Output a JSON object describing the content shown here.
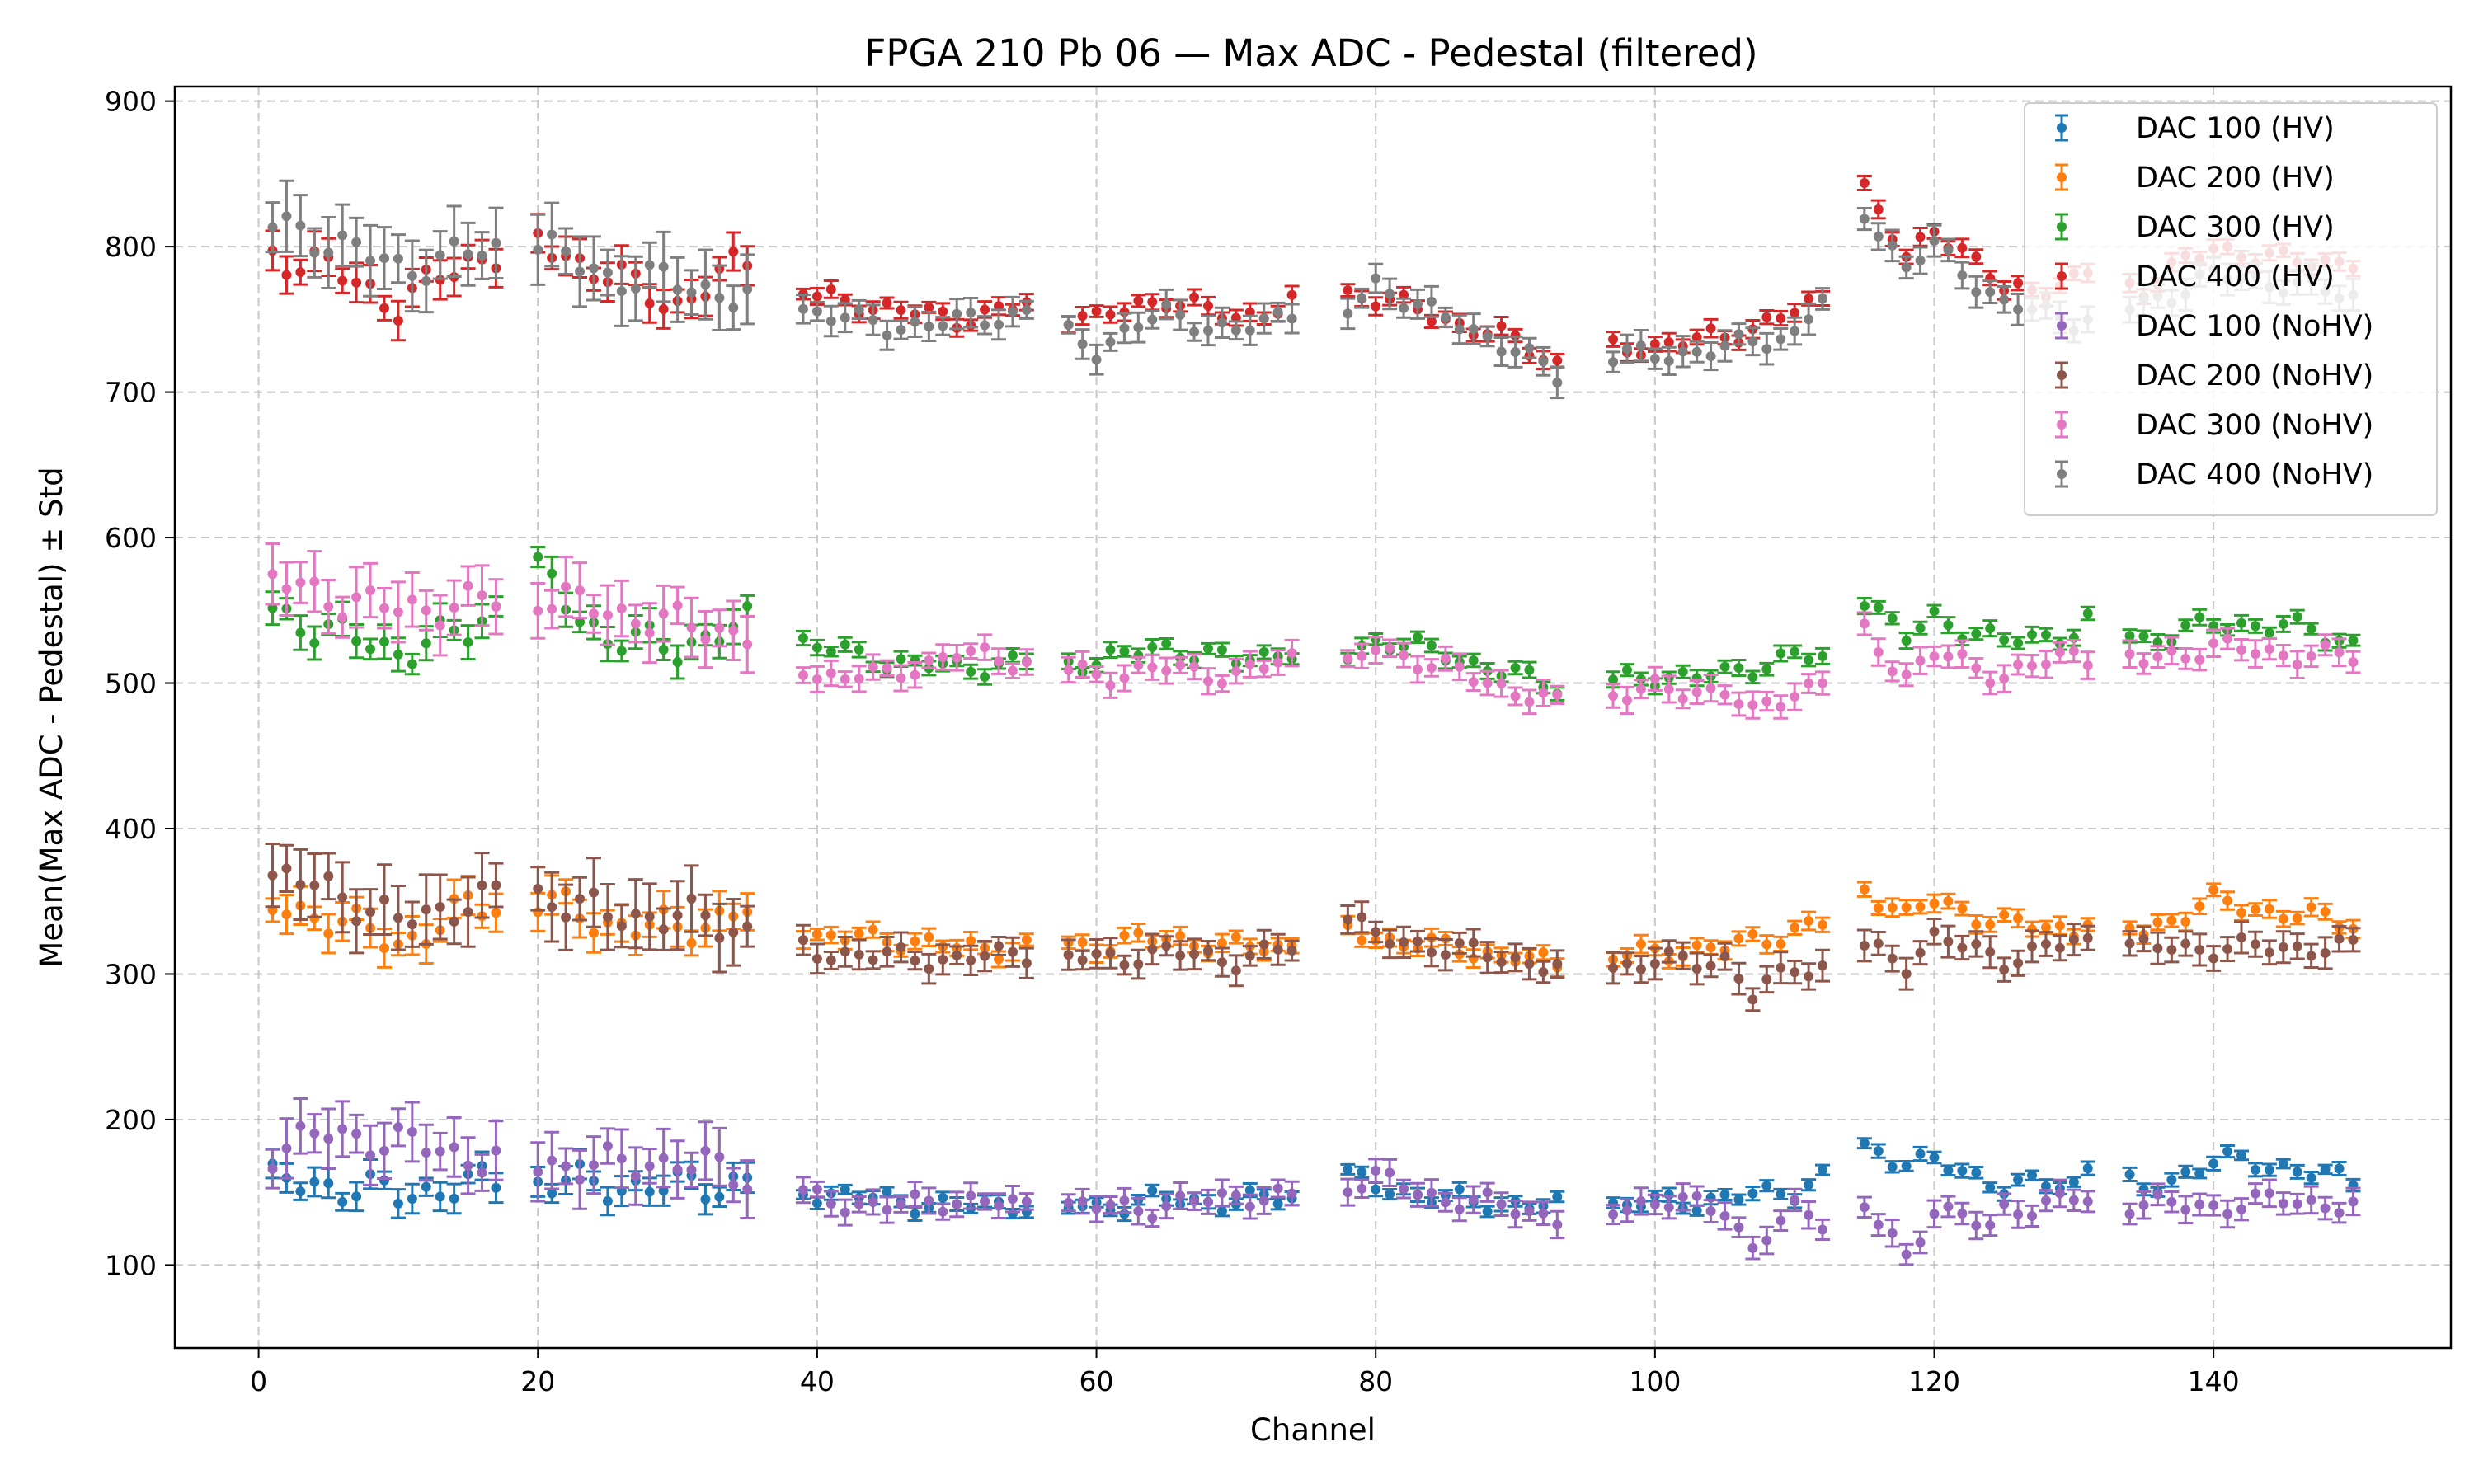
{
  "chart_data": {
    "type": "scatter",
    "title": "FPGA 210 Pb 06 — Max ADC - Pedestal (filtered)",
    "xlabel": "Channel",
    "ylabel": "Mean(Max ADC - Pedestal) ± Std",
    "xlim": [
      -6,
      157
    ],
    "ylim": [
      43,
      910
    ],
    "x_ticks": [
      0,
      20,
      40,
      60,
      80,
      100,
      120,
      140
    ],
    "y_ticks": [
      100,
      200,
      300,
      400,
      500,
      600,
      700,
      800,
      900
    ],
    "grid": true,
    "legend_position": "top-right",
    "series": [
      {
        "name": "DAC 100 (HV)",
        "color": "#1f77b4",
        "base": [
          [
            1,
            157
          ],
          [
            5,
            155
          ],
          [
            10,
            148
          ],
          [
            15,
            155
          ],
          [
            20,
            157
          ],
          [
            25,
            155
          ],
          [
            30,
            153
          ],
          [
            35,
            158
          ],
          [
            40,
            150
          ],
          [
            45,
            145
          ],
          [
            50,
            140
          ],
          [
            55,
            142
          ],
          [
            60,
            140
          ],
          [
            65,
            145
          ],
          [
            70,
            143
          ],
          [
            75,
            148
          ],
          [
            78,
            160
          ],
          [
            80,
            155
          ],
          [
            85,
            145
          ],
          [
            90,
            142
          ],
          [
            93,
            140
          ],
          [
            97,
            140
          ],
          [
            100,
            143
          ],
          [
            105,
            145
          ],
          [
            110,
            152
          ],
          [
            112,
            160
          ],
          [
            115,
            180
          ],
          [
            118,
            172
          ],
          [
            120,
            170
          ],
          [
            125,
            155
          ],
          [
            130,
            155
          ],
          [
            131,
            168
          ],
          [
            135,
            150
          ],
          [
            140,
            172
          ],
          [
            145,
            168
          ],
          [
            150,
            157
          ]
        ],
        "err": 6
      },
      {
        "name": "DAC 200 (HV)",
        "color": "#ff7f0e",
        "base": [
          [
            1,
            345
          ],
          [
            5,
            340
          ],
          [
            10,
            320
          ],
          [
            15,
            345
          ],
          [
            20,
            350
          ],
          [
            25,
            335
          ],
          [
            30,
            330
          ],
          [
            35,
            345
          ],
          [
            40,
            325
          ],
          [
            45,
            325
          ],
          [
            50,
            318
          ],
          [
            55,
            318
          ],
          [
            60,
            320
          ],
          [
            65,
            325
          ],
          [
            70,
            318
          ],
          [
            75,
            320
          ],
          [
            78,
            330
          ],
          [
            80,
            325
          ],
          [
            85,
            318
          ],
          [
            90,
            312
          ],
          [
            93,
            305
          ],
          [
            97,
            312
          ],
          [
            100,
            315
          ],
          [
            105,
            318
          ],
          [
            110,
            330
          ],
          [
            112,
            335
          ],
          [
            115,
            360
          ],
          [
            118,
            340
          ],
          [
            120,
            350
          ],
          [
            125,
            335
          ],
          [
            130,
            330
          ],
          [
            131,
            340
          ],
          [
            135,
            330
          ],
          [
            140,
            350
          ],
          [
            145,
            342
          ],
          [
            150,
            335
          ]
        ],
        "err": 8
      },
      {
        "name": "DAC 300 (HV)",
        "color": "#2ca02c",
        "base": [
          [
            1,
            550
          ],
          [
            5,
            535
          ],
          [
            10,
            522
          ],
          [
            15,
            535
          ],
          [
            20,
            575
          ],
          [
            25,
            530
          ],
          [
            30,
            525
          ],
          [
            35,
            540
          ],
          [
            40,
            525
          ],
          [
            45,
            515
          ],
          [
            50,
            510
          ],
          [
            55,
            515
          ],
          [
            60,
            515
          ],
          [
            65,
            525
          ],
          [
            70,
            515
          ],
          [
            75,
            525
          ],
          [
            78,
            520
          ],
          [
            80,
            530
          ],
          [
            85,
            520
          ],
          [
            90,
            505
          ],
          [
            93,
            498
          ],
          [
            97,
            500
          ],
          [
            100,
            505
          ],
          [
            105,
            505
          ],
          [
            110,
            520
          ],
          [
            112,
            515
          ],
          [
            115,
            560
          ],
          [
            118,
            530
          ],
          [
            120,
            545
          ],
          [
            125,
            528
          ],
          [
            130,
            535
          ],
          [
            131,
            542
          ],
          [
            135,
            530
          ],
          [
            140,
            540
          ],
          [
            145,
            540
          ],
          [
            150,
            528
          ]
        ],
        "err": 7
      },
      {
        "name": "DAC 400 (HV)",
        "color": "#d62728",
        "base": [
          [
            1,
            795
          ],
          [
            5,
            785
          ],
          [
            10,
            760
          ],
          [
            15,
            790
          ],
          [
            20,
            805
          ],
          [
            25,
            780
          ],
          [
            30,
            760
          ],
          [
            35,
            790
          ],
          [
            40,
            765
          ],
          [
            45,
            758
          ],
          [
            50,
            750
          ],
          [
            55,
            760
          ],
          [
            60,
            750
          ],
          [
            65,
            765
          ],
          [
            70,
            750
          ],
          [
            75,
            765
          ],
          [
            78,
            768
          ],
          [
            80,
            765
          ],
          [
            85,
            750
          ],
          [
            90,
            735
          ],
          [
            93,
            720
          ],
          [
            97,
            730
          ],
          [
            100,
            732
          ],
          [
            105,
            738
          ],
          [
            110,
            755
          ],
          [
            112,
            762
          ],
          [
            115,
            840
          ],
          [
            118,
            790
          ],
          [
            120,
            815
          ],
          [
            125,
            770
          ],
          [
            130,
            775
          ],
          [
            131,
            780
          ],
          [
            135,
            772
          ],
          [
            140,
            800
          ],
          [
            145,
            790
          ],
          [
            150,
            790
          ]
        ],
        "err": 8
      },
      {
        "name": "DAC 100 (NoHV)",
        "color": "#9467bd",
        "base": [
          [
            1,
            180
          ],
          [
            5,
            190
          ],
          [
            10,
            185
          ],
          [
            15,
            175
          ],
          [
            20,
            170
          ],
          [
            25,
            168
          ],
          [
            30,
            172
          ],
          [
            35,
            160
          ],
          [
            40,
            145
          ],
          [
            45,
            140
          ],
          [
            50,
            145
          ],
          [
            55,
            140
          ],
          [
            60,
            140
          ],
          [
            65,
            140
          ],
          [
            70,
            148
          ],
          [
            75,
            145
          ],
          [
            78,
            155
          ],
          [
            80,
            160
          ],
          [
            85,
            145
          ],
          [
            90,
            140
          ],
          [
            93,
            132
          ],
          [
            97,
            140
          ],
          [
            100,
            143
          ],
          [
            105,
            140
          ],
          [
            107,
            110
          ],
          [
            110,
            138
          ],
          [
            112,
            132
          ],
          [
            115,
            140
          ],
          [
            118,
            105
          ],
          [
            120,
            140
          ],
          [
            124,
            125
          ],
          [
            125,
            138
          ],
          [
            130,
            145
          ],
          [
            135,
            142
          ],
          [
            140,
            140
          ],
          [
            145,
            145
          ],
          [
            150,
            140
          ]
        ],
        "err": 12
      },
      {
        "name": "DAC 200 (NoHV)",
        "color": "#8c564b",
        "base": [
          [
            1,
            365
          ],
          [
            5,
            360
          ],
          [
            10,
            335
          ],
          [
            15,
            350
          ],
          [
            20,
            355
          ],
          [
            25,
            340
          ],
          [
            30,
            340
          ],
          [
            35,
            330
          ],
          [
            40,
            315
          ],
          [
            45,
            312
          ],
          [
            50,
            310
          ],
          [
            55,
            315
          ],
          [
            60,
            310
          ],
          [
            65,
            315
          ],
          [
            70,
            310
          ],
          [
            75,
            320
          ],
          [
            78,
            340
          ],
          [
            80,
            325
          ],
          [
            85,
            318
          ],
          [
            90,
            310
          ],
          [
            93,
            305
          ],
          [
            97,
            305
          ],
          [
            100,
            308
          ],
          [
            105,
            310
          ],
          [
            107,
            285
          ],
          [
            110,
            305
          ],
          [
            112,
            305
          ],
          [
            115,
            318
          ],
          [
            118,
            308
          ],
          [
            120,
            325
          ],
          [
            125,
            310
          ],
          [
            130,
            322
          ],
          [
            135,
            318
          ],
          [
            140,
            318
          ],
          [
            145,
            318
          ],
          [
            150,
            318
          ]
        ],
        "err": 14
      },
      {
        "name": "DAC 300 (NoHV)",
        "color": "#e377c2",
        "base": [
          [
            1,
            570
          ],
          [
            5,
            560
          ],
          [
            10,
            550
          ],
          [
            15,
            555
          ],
          [
            20,
            560
          ],
          [
            25,
            550
          ],
          [
            30,
            540
          ],
          [
            35,
            535
          ],
          [
            40,
            505
          ],
          [
            45,
            505
          ],
          [
            50,
            520
          ],
          [
            55,
            515
          ],
          [
            60,
            505
          ],
          [
            65,
            510
          ],
          [
            70,
            505
          ],
          [
            75,
            520
          ],
          [
            78,
            510
          ],
          [
            80,
            525
          ],
          [
            85,
            510
          ],
          [
            90,
            495
          ],
          [
            93,
            485
          ],
          [
            97,
            492
          ],
          [
            100,
            495
          ],
          [
            105,
            495
          ],
          [
            107,
            478
          ],
          [
            110,
            495
          ],
          [
            112,
            500
          ],
          [
            115,
            535
          ],
          [
            118,
            505
          ],
          [
            120,
            520
          ],
          [
            125,
            505
          ],
          [
            130,
            520
          ],
          [
            135,
            515
          ],
          [
            140,
            525
          ],
          [
            145,
            520
          ],
          [
            150,
            518
          ]
        ],
        "err": 12
      },
      {
        "name": "DAC 400 (NoHV)",
        "color": "#7f7f7f",
        "base": [
          [
            1,
            815
          ],
          [
            5,
            805
          ],
          [
            10,
            785
          ],
          [
            15,
            795
          ],
          [
            20,
            800
          ],
          [
            25,
            780
          ],
          [
            30,
            775
          ],
          [
            35,
            765
          ],
          [
            40,
            755
          ],
          [
            45,
            745
          ],
          [
            50,
            748
          ],
          [
            55,
            755
          ],
          [
            60,
            730
          ],
          [
            65,
            755
          ],
          [
            70,
            740
          ],
          [
            75,
            760
          ],
          [
            78,
            755
          ],
          [
            80,
            775
          ],
          [
            85,
            750
          ],
          [
            90,
            730
          ],
          [
            93,
            710
          ],
          [
            97,
            725
          ],
          [
            100,
            725
          ],
          [
            105,
            730
          ],
          [
            110,
            740
          ],
          [
            112,
            765
          ],
          [
            115,
            825
          ],
          [
            118,
            785
          ],
          [
            120,
            800
          ],
          [
            125,
            760
          ],
          [
            130,
            750
          ],
          [
            135,
            760
          ],
          [
            140,
            780
          ],
          [
            145,
            775
          ],
          [
            150,
            765
          ]
        ],
        "err": 14
      }
    ]
  }
}
